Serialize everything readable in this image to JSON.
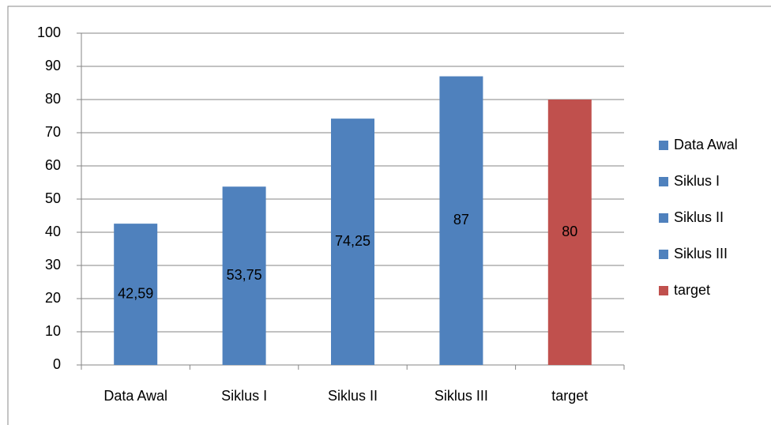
{
  "chart_data": {
    "type": "bar",
    "categories": [
      "Data Awal",
      "Siklus I",
      "Siklus II",
      "Siklus III",
      "target"
    ],
    "values": [
      42.59,
      53.75,
      74.25,
      87,
      80
    ],
    "value_labels": [
      "42,59",
      "53,75",
      "74,25",
      "87",
      "80"
    ],
    "colors": [
      "#4f81bd",
      "#4f81bd",
      "#4f81bd",
      "#4f81bd",
      "#c0504d"
    ],
    "ylim": [
      0,
      100
    ],
    "yticks": [
      0,
      10,
      20,
      30,
      40,
      50,
      60,
      70,
      80,
      90,
      100
    ],
    "grid": true,
    "legend": "right"
  }
}
